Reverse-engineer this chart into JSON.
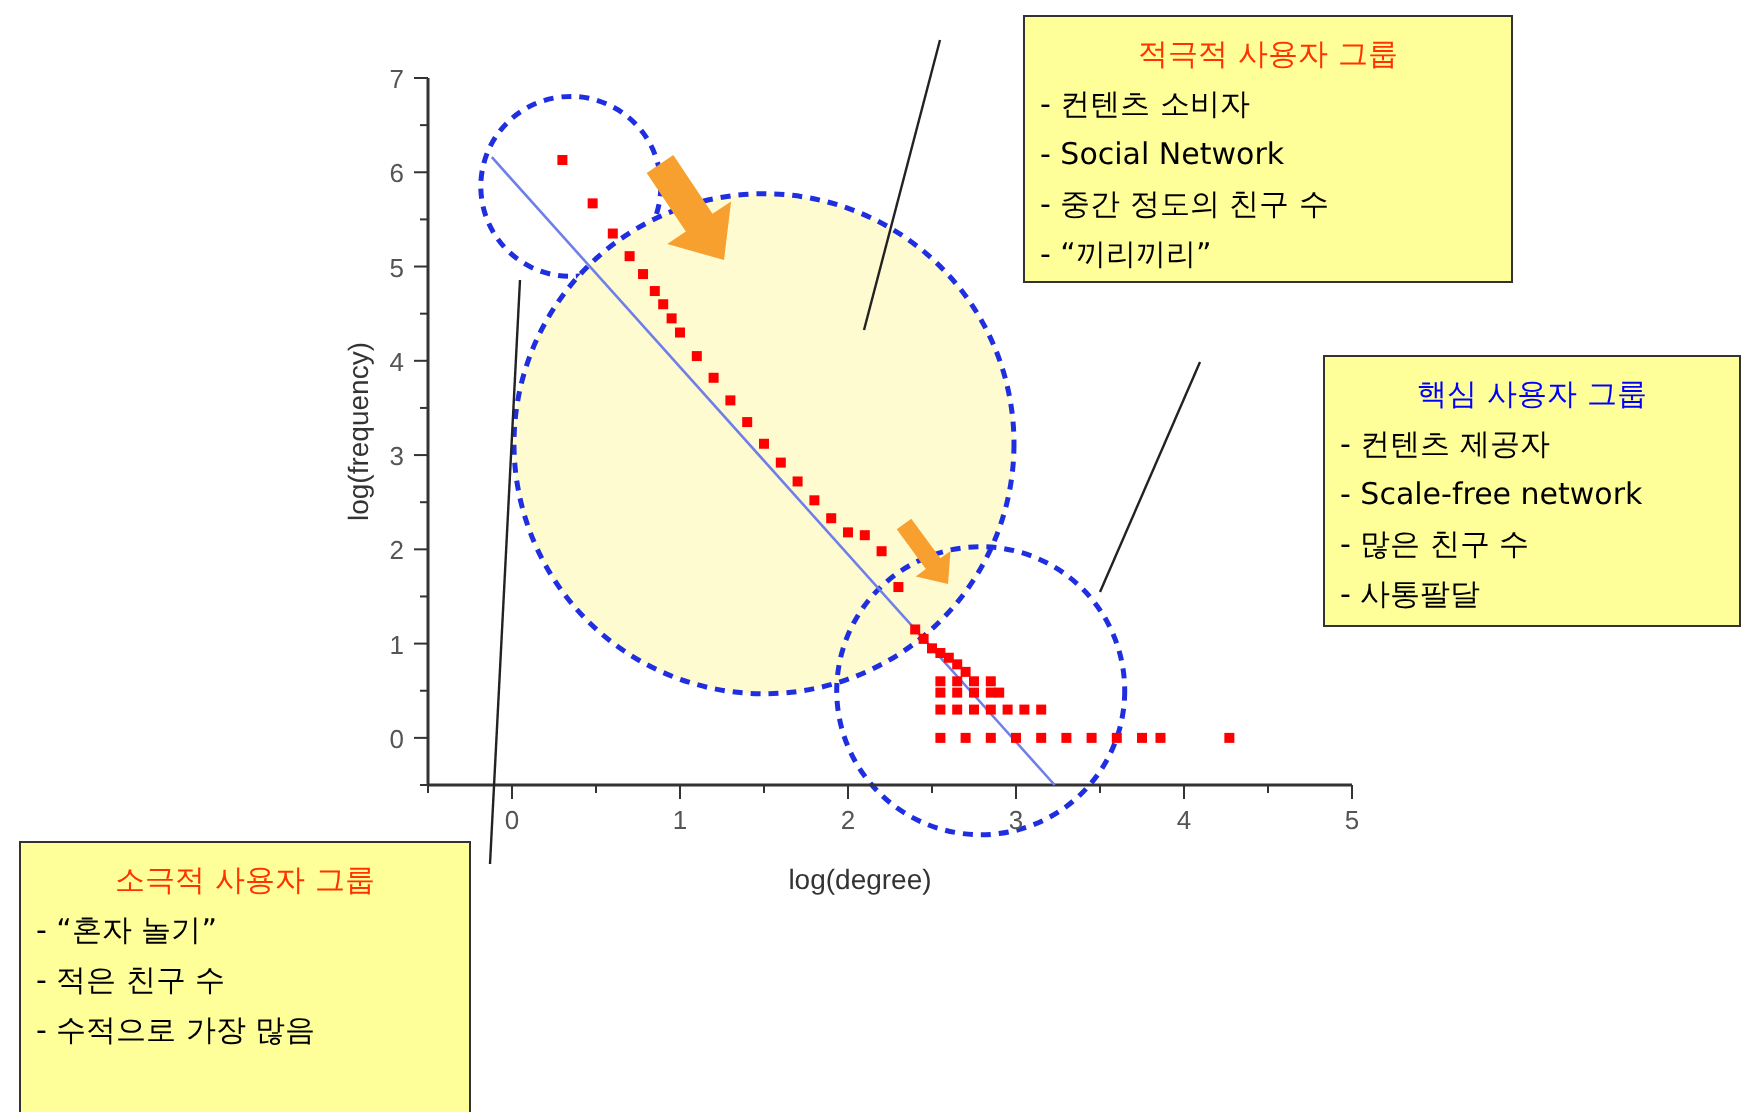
{
  "chart_data": {
    "type": "scatter",
    "xlabel": "log(degree)",
    "ylabel": "log(frequency)",
    "xlim": [
      -0.5,
      5
    ],
    "xticks": [
      0,
      1,
      2,
      3,
      4,
      5
    ],
    "ylim": [
      -0.5,
      7
    ],
    "yticks": [
      0,
      1,
      2,
      3,
      4,
      5,
      6,
      7
    ],
    "grid": false,
    "marker": "square",
    "series": [
      {
        "type": "scatter",
        "color": "#ff0000",
        "x": [
          0.3,
          0.48,
          0.6,
          0.7,
          0.78,
          0.85,
          0.9,
          0.95,
          1.0,
          1.1,
          1.2,
          1.3,
          1.4,
          1.5,
          1.6,
          1.7,
          1.8,
          1.9,
          2.0,
          2.1,
          2.2,
          2.3,
          2.4,
          2.45,
          2.5,
          2.55,
          2.6,
          2.65,
          2.7,
          2.55,
          2.65,
          2.75,
          2.85,
          2.55,
          2.65,
          2.75,
          2.85,
          2.9,
          2.55,
          2.65,
          2.75,
          2.85,
          2.95,
          3.05,
          3.15,
          2.55,
          2.7,
          2.85,
          3.0,
          3.15,
          3.3,
          3.45,
          3.6,
          3.75,
          3.86,
          4.27
        ],
        "values": [
          6.13,
          5.67,
          5.35,
          5.11,
          4.92,
          4.74,
          4.6,
          4.45,
          4.3,
          4.05,
          3.82,
          3.58,
          3.35,
          3.12,
          2.92,
          2.72,
          2.52,
          2.33,
          2.18,
          2.15,
          1.98,
          1.6,
          1.15,
          1.05,
          0.95,
          0.9,
          0.85,
          0.78,
          0.7,
          0.6,
          0.6,
          0.6,
          0.6,
          0.48,
          0.48,
          0.48,
          0.48,
          0.48,
          0.3,
          0.3,
          0.3,
          0.3,
          0.3,
          0.3,
          0.3,
          0,
          0,
          0,
          0,
          0,
          0,
          0,
          0,
          0,
          0,
          0
        ]
      },
      {
        "type": "line",
        "color": "#6f7fe8",
        "marker": "none",
        "x": [
          -0.12,
          3.23
        ],
        "values": [
          6.16,
          -0.5
        ]
      }
    ],
    "annotations": [
      "적극적 사용자 그룹\n- 컨텐츠 소비자\n- Social Network\n- 중간 정도의 친구 수\n- “끼리끼리”",
      "핵심 사용자 그룹\n- 컨텐츠 제공자\n- Scale-free network\n- 많은 친구 수\n- 사통팔달",
      "소극적 사용자 그룹\n- “혼자 놀기”\n- 적은 친구 수\n- 수적으로 가장 많음"
    ]
  }
}
